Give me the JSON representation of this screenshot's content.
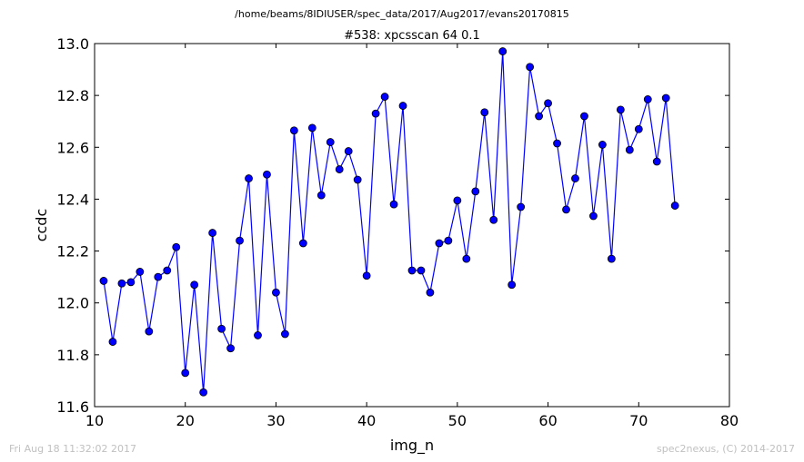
{
  "header": {
    "file_path": "/home/beams/8IDIUSER/spec_data/2017/Aug2017/evans20170815"
  },
  "footer": {
    "timestamp": "Fri Aug 18 11:32:02 2017",
    "credit": "spec2nexus, (C) 2014-2017"
  },
  "chart_data": {
    "type": "line",
    "title": "#538: xpcsscan 64 0.1",
    "xlabel": "img_n",
    "ylabel": "ccdc",
    "xlim": [
      10,
      80
    ],
    "ylim": [
      11.6,
      13.0
    ],
    "xticks": [
      10,
      20,
      30,
      40,
      50,
      60,
      70,
      80
    ],
    "yticks": [
      11.6,
      11.8,
      12.0,
      12.2,
      12.4,
      12.6,
      12.8,
      13.0
    ],
    "xtick_labels": [
      "10",
      "20",
      "30",
      "40",
      "50",
      "60",
      "70",
      "80"
    ],
    "ytick_labels": [
      "11.6",
      "11.8",
      "12.0",
      "12.2",
      "12.4",
      "12.6",
      "12.8",
      "13.0"
    ],
    "grid": false,
    "line_color": "#0000ff",
    "marker_color": "#0000ff",
    "series": [
      {
        "x": [
          11,
          12,
          13,
          14,
          15,
          16,
          17,
          18,
          19,
          20,
          21,
          22,
          23,
          24,
          25,
          26,
          27,
          28,
          29,
          30,
          31,
          32,
          33,
          34,
          35,
          36,
          37,
          38,
          39,
          40,
          41,
          42,
          43,
          44,
          45,
          46,
          47,
          48,
          49,
          50,
          51,
          52,
          53,
          54,
          55,
          56,
          57,
          58,
          59,
          60,
          61,
          62,
          63,
          64,
          65,
          66,
          67,
          68,
          69,
          70,
          71,
          72,
          73,
          74
        ],
        "values": [
          12.085,
          11.85,
          12.075,
          12.08,
          12.12,
          11.89,
          12.1,
          12.125,
          12.215,
          11.73,
          12.07,
          11.655,
          12.27,
          11.9,
          11.825,
          12.24,
          12.48,
          11.875,
          12.495,
          12.04,
          11.88,
          12.665,
          12.23,
          12.675,
          12.415,
          12.62,
          12.515,
          12.585,
          12.475,
          12.105,
          12.73,
          12.795,
          12.38,
          12.76,
          12.125,
          12.125,
          12.04,
          12.23,
          12.24,
          12.395,
          12.17,
          12.43,
          12.735,
          12.32,
          12.97,
          12.07,
          12.37,
          12.91,
          12.72,
          12.77,
          12.615,
          12.36,
          12.48,
          12.72,
          12.335,
          12.61,
          12.17,
          12.745,
          12.59,
          12.67,
          12.785,
          12.545,
          12.79,
          12.375
        ]
      }
    ]
  }
}
